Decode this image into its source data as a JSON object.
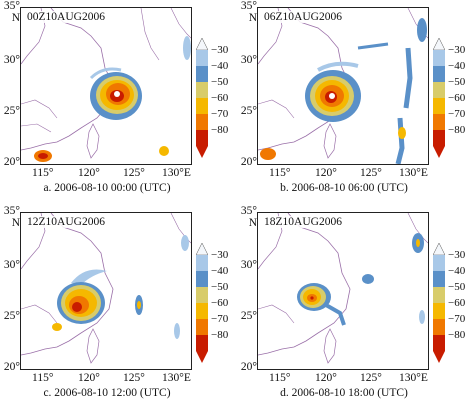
{
  "panels": [
    {
      "stamp": "00Z10AUG2006",
      "caption": "a. 2006-08-10 00:00 (UTC)"
    },
    {
      "stamp": "06Z10AUG2006",
      "caption": "b. 2006-08-10 06:00 (UTC)"
    },
    {
      "stamp": "12Z10AUG2006",
      "caption": "c. 2006-08-10 12:00 (UTC)"
    },
    {
      "stamp": "18Z10AUG2006",
      "caption": "d. 2006-08-10 18:00 (UTC)"
    }
  ],
  "lat_labels": [
    "35°",
    "N",
    "30°",
    "25°",
    "20°"
  ],
  "lon_labels": [
    "115°",
    "120°",
    "125°",
    "130°E"
  ],
  "colorbar": {
    "labels": [
      "−30",
      "−40",
      "−50",
      "−60",
      "−70",
      "−80"
    ],
    "colors": [
      "#f4f7fb",
      "#a8c8e8",
      "#5a90c8",
      "#d8cc6a",
      "#f5b800",
      "#f07800",
      "#c81c00"
    ]
  },
  "colors": {
    "coast": "#9a6fa8",
    "frame": "#222222",
    "eye": "#ffffff"
  }
}
